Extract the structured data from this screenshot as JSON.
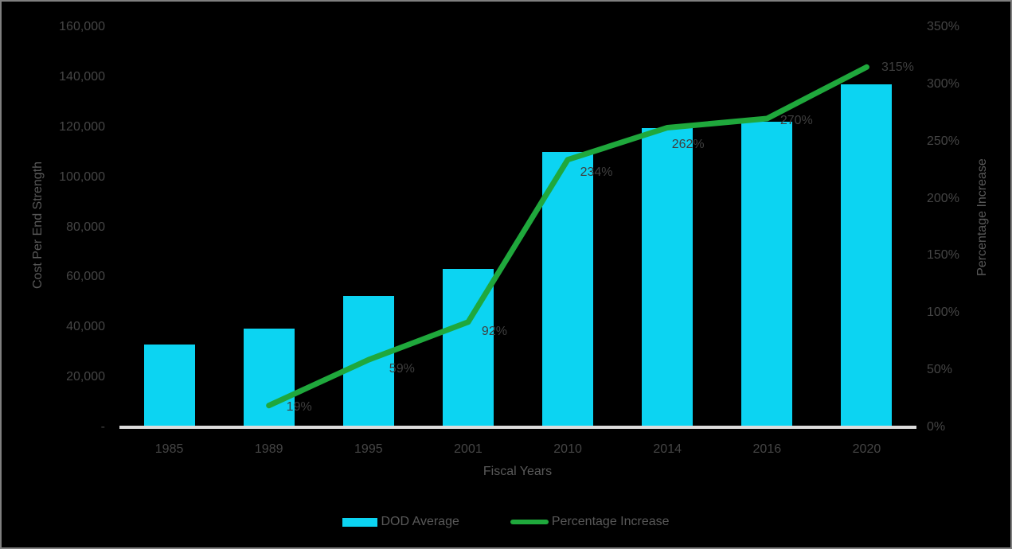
{
  "chart_data": {
    "type": "combo-bar-line",
    "title": "",
    "categories": [
      "1985",
      "1989",
      "1995",
      "2001",
      "2010",
      "2014",
      "2016",
      "2020"
    ],
    "series": [
      {
        "name": "DOD Average",
        "type": "bar",
        "axis": "left",
        "values": [
          33000,
          39300,
          52500,
          63400,
          110200,
          119500,
          122100,
          137000
        ],
        "color": "#0CD4F2"
      },
      {
        "name": "Percentage Increase",
        "type": "line",
        "axis": "right",
        "values": [
          null,
          19,
          59,
          92,
          234,
          262,
          270,
          315
        ],
        "point_labels": [
          "",
          "19%",
          "59%",
          "92%",
          "234%",
          "262%",
          "270%",
          "315%"
        ],
        "color": "#1FA83C"
      }
    ],
    "left_axis": {
      "title": "Cost Per End Strength",
      "min": 0,
      "max": 160000,
      "step": 20000,
      "tick_labels": [
        "-",
        "20,000",
        "40,000",
        "60,000",
        "80,000",
        "100,000",
        "120,000",
        "140,000",
        "160,000"
      ]
    },
    "right_axis": {
      "title": "Percentage Increase",
      "min": 0,
      "max": 350,
      "step": 50,
      "tick_labels": [
        "0%",
        "50%",
        "100%",
        "150%",
        "200%",
        "250%",
        "300%",
        "350%"
      ]
    },
    "x_axis": {
      "title": "Fiscal Years"
    },
    "legend": [
      {
        "label": "DOD Average",
        "swatch": "bar",
        "color": "#0CD4F2"
      },
      {
        "label": "Percentage Increase",
        "swatch": "line",
        "color": "#1FA83C"
      }
    ],
    "colors": {
      "background": "#000000",
      "border": "#7f7f7f",
      "axis_line": "#DCDCDC",
      "tick_text": "#454545",
      "data_label_text": "#3f3f3f",
      "title_text": "#595959",
      "bar": "#0CD4F2",
      "line": "#1FA83C"
    },
    "layout_hints": {
      "grid": "off",
      "legend_position": "bottom"
    }
  }
}
